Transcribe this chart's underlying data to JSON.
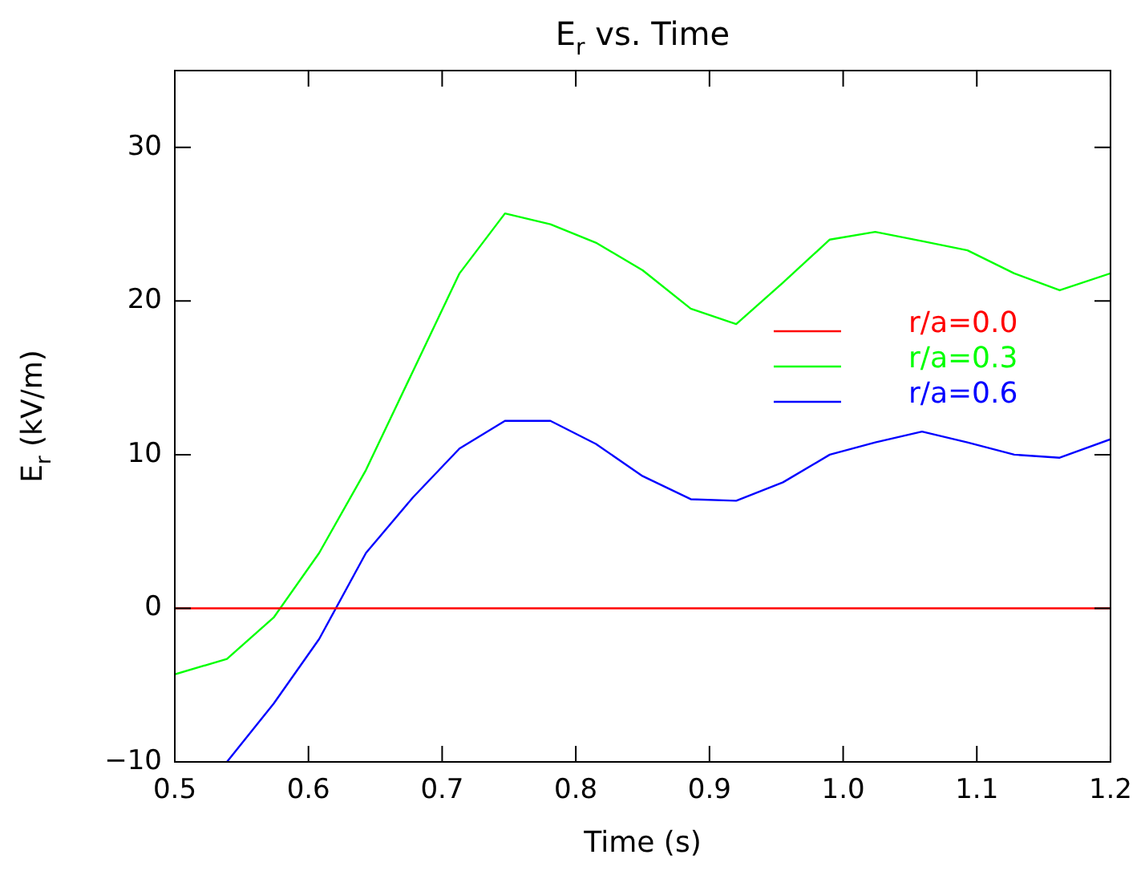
{
  "chart_data": {
    "type": "line",
    "title": "E$_{r}$ vs. Time",
    "xlabel": "Time (s)",
    "ylabel": "E$_{r}$ (kV/m)",
    "x": [
      0.5,
      0.539,
      0.574,
      0.608,
      0.643,
      0.678,
      0.713,
      0.747,
      0.781,
      0.815,
      0.85,
      0.886,
      0.92,
      0.955,
      0.99,
      1.024,
      1.059,
      1.093,
      1.128,
      1.162,
      1.2
    ],
    "series": [
      {
        "name": "r/a=0.0",
        "color": "#ff0000",
        "values": [
          0,
          0,
          0,
          0,
          0,
          0,
          0,
          0,
          0,
          0,
          0,
          0,
          0,
          0,
          0,
          0,
          0,
          0,
          0,
          0,
          0
        ]
      },
      {
        "name": "r/a=0.3",
        "color": "#00ff00",
        "values": [
          -4.3,
          -3.3,
          -0.6,
          3.6,
          9.0,
          15.4,
          21.8,
          25.7,
          25.0,
          23.8,
          22.0,
          19.5,
          18.5,
          21.2,
          24.0,
          24.5,
          23.9,
          23.3,
          21.8,
          20.7,
          21.8
        ]
      },
      {
        "name": "r/a=0.6",
        "color": "#0000ff",
        "values": [
          null,
          -10,
          -6.2,
          -2.0,
          3.6,
          7.2,
          10.4,
          12.2,
          12.2,
          10.7,
          8.6,
          7.1,
          7.0,
          8.2,
          10.0,
          10.8,
          11.5,
          10.8,
          10.0,
          9.8,
          11.0
        ]
      }
    ],
    "xlim": [
      0.5,
      1.2
    ],
    "xticks": [
      {
        "value": 0.5,
        "label": "0.5"
      },
      {
        "value": 0.6,
        "label": "0.6"
      },
      {
        "value": 0.7,
        "label": "0.7"
      },
      {
        "value": 0.8,
        "label": "0.8"
      },
      {
        "value": 0.9,
        "label": "0.9"
      },
      {
        "value": 1.0,
        "label": "1.0"
      },
      {
        "value": 1.1,
        "label": "1.1"
      },
      {
        "value": 1.2,
        "label": "1.2"
      }
    ],
    "ylim": [
      -10,
      35
    ],
    "yticks": [
      -10,
      0,
      10,
      20,
      30
    ],
    "grid": false,
    "legend": "right",
    "marker": "none",
    "line_style": "solid"
  }
}
